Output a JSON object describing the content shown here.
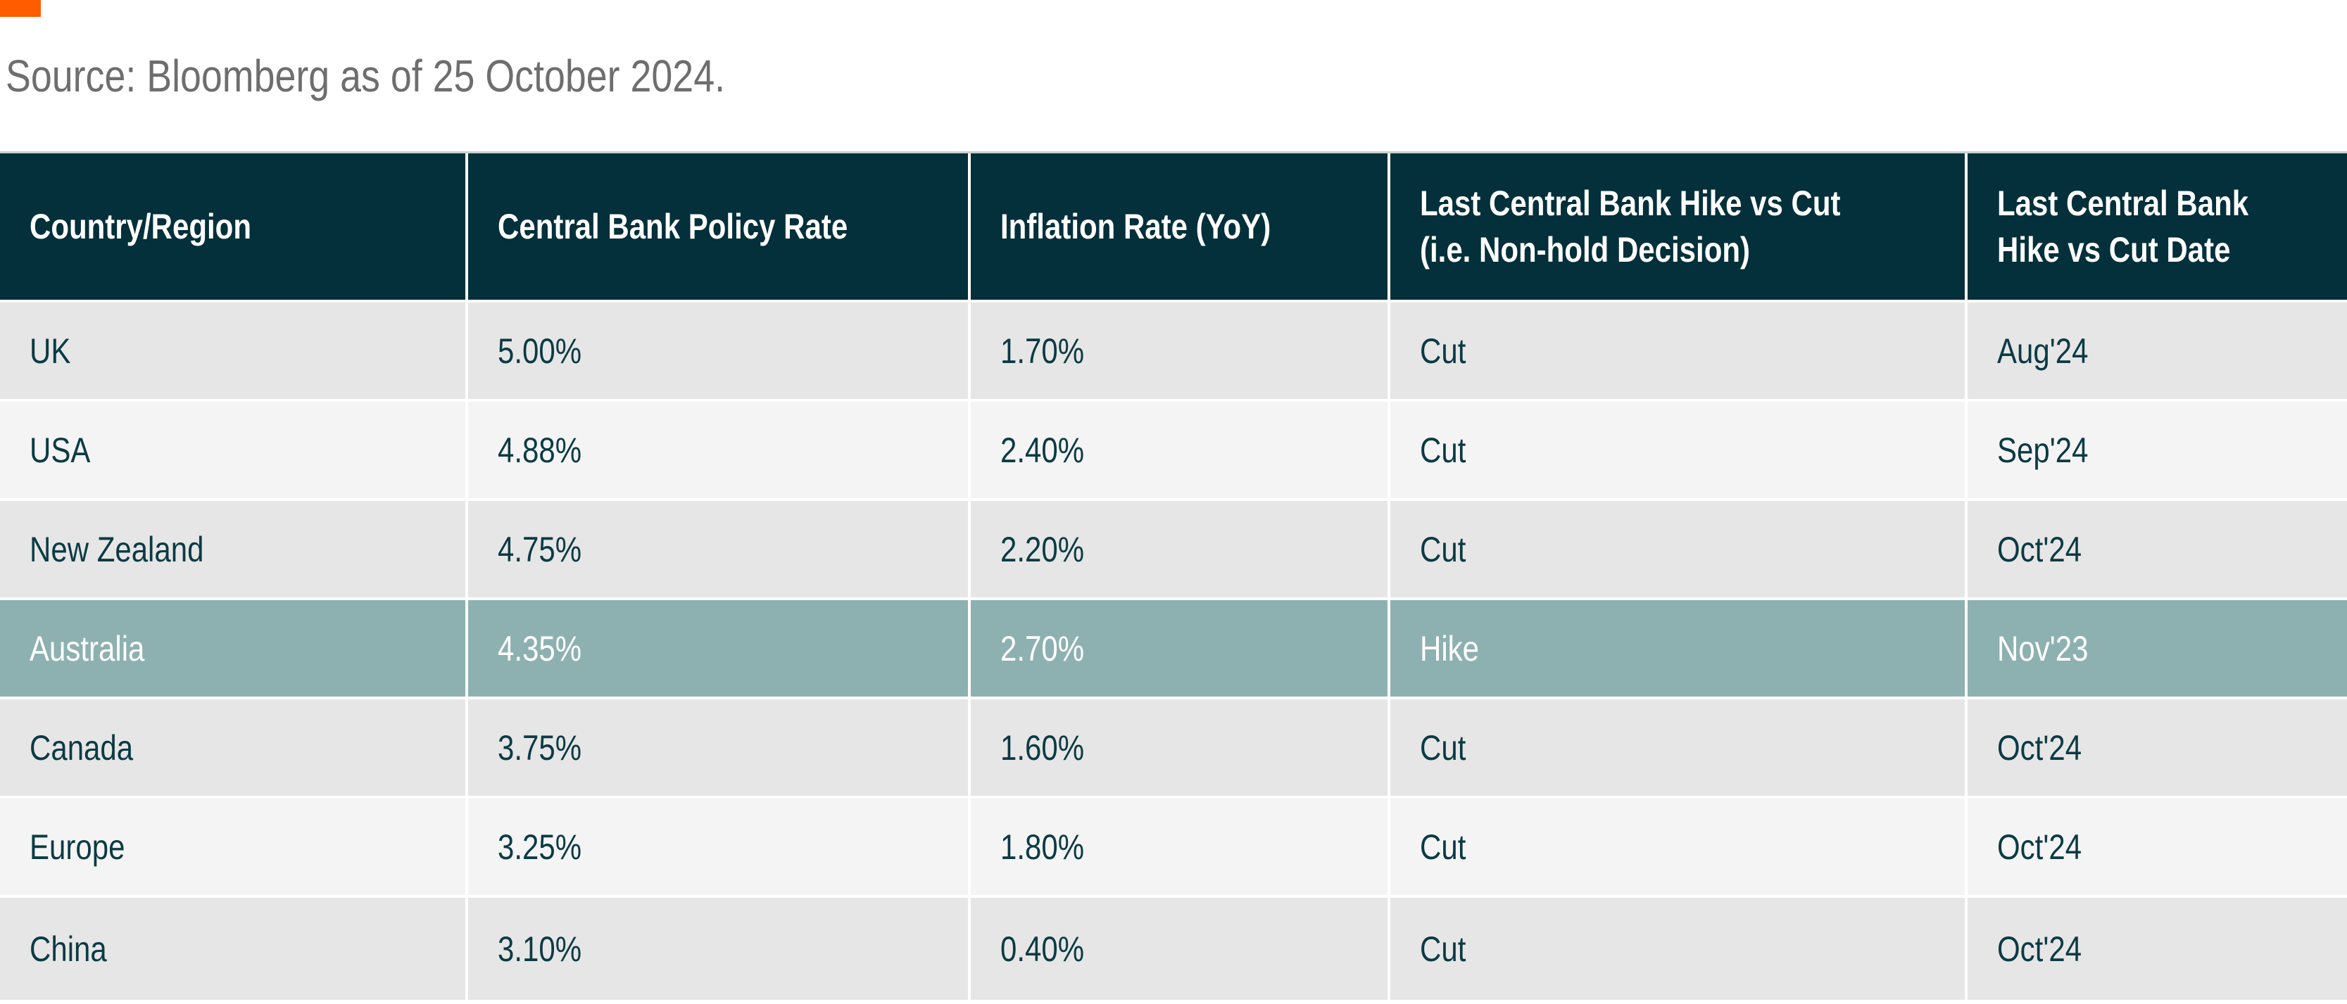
{
  "page": {
    "source_note": "Source: Bloomberg as of 25 October 2024.",
    "colors": {
      "accent_orange": "#FF5C00",
      "header_background": "#03303A",
      "header_text": "#FFFFFF",
      "row_background_dark": "#E6E6E6",
      "row_background_light": "#F4F4F4",
      "highlight_row_background": "#8DB1B0",
      "highlight_row_text": "#FFFFFF",
      "body_text": "#0C3A43",
      "source_text": "#6E6E6E"
    }
  },
  "table": {
    "columns": [
      {
        "label": "Country/Region"
      },
      {
        "label": "Central Bank Policy Rate"
      },
      {
        "label": "Inflation Rate (YoY)"
      },
      {
        "label": "Last Central Bank Hike vs Cut\n(i.e. Non-hold Decision)"
      },
      {
        "label": "Last Central Bank\nHike vs Cut Date"
      }
    ],
    "rows": [
      {
        "country": "UK",
        "policy_rate": "5.00%",
        "inflation_yoy": "1.70%",
        "last_decision": "Cut",
        "last_decision_date": "Aug'24",
        "highlighted": false
      },
      {
        "country": "USA",
        "policy_rate": "4.88%",
        "inflation_yoy": "2.40%",
        "last_decision": "Cut",
        "last_decision_date": "Sep'24",
        "highlighted": false
      },
      {
        "country": "New Zealand",
        "policy_rate": "4.75%",
        "inflation_yoy": "2.20%",
        "last_decision": "Cut",
        "last_decision_date": "Oct'24",
        "highlighted": false
      },
      {
        "country": "Australia",
        "policy_rate": "4.35%",
        "inflation_yoy": "2.70%",
        "last_decision": "Hike",
        "last_decision_date": "Nov'23",
        "highlighted": true
      },
      {
        "country": "Canada",
        "policy_rate": "3.75%",
        "inflation_yoy": "1.60%",
        "last_decision": "Cut",
        "last_decision_date": "Oct'24",
        "highlighted": false
      },
      {
        "country": "Europe",
        "policy_rate": "3.25%",
        "inflation_yoy": "1.80%",
        "last_decision": "Cut",
        "last_decision_date": "Oct'24",
        "highlighted": false
      },
      {
        "country": "China",
        "policy_rate": "3.10%",
        "inflation_yoy": "0.40%",
        "last_decision": "Cut",
        "last_decision_date": "Oct'24",
        "highlighted": false
      }
    ]
  }
}
